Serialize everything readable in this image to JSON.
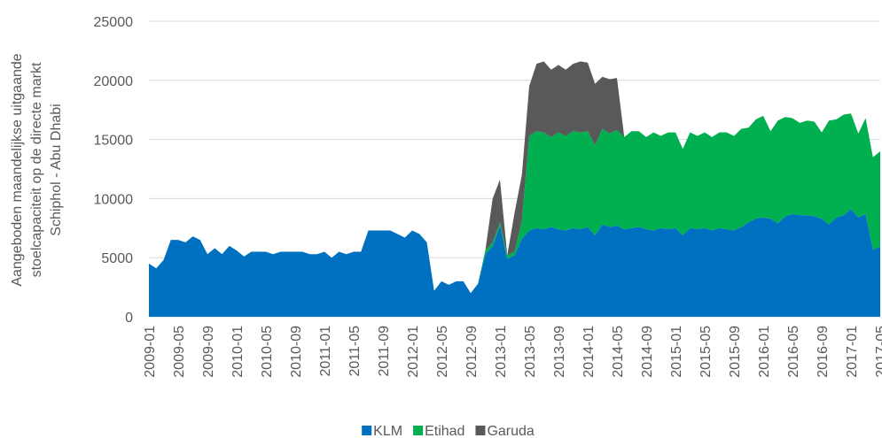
{
  "chart_data": {
    "type": "stacked-area",
    "y_label": [
      "Aangeboden maandelijkse uitgaande",
      "stoelcapaciteit op de directe markt",
      "Schiphol - Abu Dhabi"
    ],
    "x": [
      "2009-01",
      null,
      null,
      null,
      "2009-05",
      null,
      null,
      null,
      "2009-09",
      null,
      null,
      null,
      "2010-01",
      null,
      null,
      null,
      "2010-05",
      null,
      null,
      null,
      "2010-09",
      null,
      null,
      null,
      "2011-01",
      null,
      null,
      null,
      "2011-05",
      null,
      null,
      null,
      "2011-09",
      null,
      null,
      null,
      "2012-01",
      null,
      null,
      null,
      "2012-05",
      null,
      null,
      null,
      "2012-09",
      null,
      null,
      null,
      "2013-01",
      null,
      null,
      null,
      "2013-05",
      null,
      null,
      null,
      "2013-09",
      null,
      null,
      null,
      "2014-01",
      null,
      null,
      null,
      "2014-05",
      null,
      null,
      null,
      "2014-09",
      null,
      null,
      null,
      "2015-01",
      null,
      null,
      null,
      "2015-05",
      null,
      null,
      null,
      "2015-09",
      null,
      null,
      null,
      "2016-01",
      null,
      null,
      null,
      "2016-05",
      null,
      null,
      null,
      "2016-09",
      null,
      null,
      null,
      "2017-01",
      null,
      null,
      null,
      "2017-05"
    ],
    "series": [
      {
        "name": "KLM",
        "color": "#0070c0",
        "values": [
          4500,
          4100,
          4800,
          6500,
          6500,
          6300,
          6800,
          6500,
          5300,
          5800,
          5300,
          6000,
          5600,
          5100,
          5500,
          5500,
          5500,
          5300,
          5500,
          5500,
          5500,
          5500,
          5300,
          5300,
          5500,
          5000,
          5500,
          5300,
          5500,
          5500,
          7300,
          7300,
          7300,
          7300,
          7000,
          6700,
          7300,
          7000,
          6300,
          2200,
          3000,
          2700,
          3000,
          3000,
          2000,
          2800,
          5300,
          6000,
          7700,
          4900,
          5200,
          6600,
          7300,
          7500,
          7400,
          7600,
          7400,
          7300,
          7500,
          7400,
          7600,
          6900,
          7800,
          7600,
          7700,
          7400,
          7500,
          7600,
          7400,
          7300,
          7500,
          7400,
          7500,
          6900,
          7500,
          7400,
          7500,
          7300,
          7500,
          7400,
          7300,
          7600,
          8000,
          8300,
          8400,
          8300,
          7900,
          8500,
          8700,
          8600,
          8600,
          8500,
          8300,
          7800,
          8400,
          8600,
          9100,
          8400,
          8700,
          5700,
          5900
        ]
      },
      {
        "name": "Etihad",
        "color": "#00b050",
        "values": [
          0,
          0,
          0,
          0,
          0,
          0,
          0,
          0,
          0,
          0,
          0,
          0,
          0,
          0,
          0,
          0,
          0,
          0,
          0,
          0,
          0,
          0,
          0,
          0,
          0,
          0,
          0,
          0,
          0,
          0,
          0,
          0,
          0,
          0,
          0,
          0,
          0,
          0,
          0,
          0,
          0,
          0,
          0,
          0,
          0,
          0,
          300,
          300,
          300,
          300,
          300,
          1500,
          8000,
          8200,
          8200,
          7600,
          8200,
          8000,
          8200,
          8200,
          8100,
          7600,
          8100,
          7900,
          8100,
          7800,
          8200,
          8100,
          7800,
          8300,
          7800,
          8200,
          8100,
          7300,
          8100,
          7900,
          8100,
          7900,
          8100,
          8200,
          8000,
          8300,
          8000,
          8400,
          8600,
          7400,
          8700,
          8400,
          8100,
          7800,
          8000,
          8000,
          7300,
          8800,
          8300,
          8500,
          8100,
          7100,
          8100,
          7800,
          8100
        ]
      },
      {
        "name": "Garuda",
        "color": "#595959",
        "values": [
          0,
          0,
          0,
          0,
          0,
          0,
          0,
          0,
          0,
          0,
          0,
          0,
          0,
          0,
          0,
          0,
          0,
          0,
          0,
          0,
          0,
          0,
          0,
          0,
          0,
          0,
          0,
          0,
          0,
          0,
          0,
          0,
          0,
          0,
          0,
          0,
          0,
          0,
          0,
          0,
          0,
          0,
          0,
          0,
          0,
          0,
          0,
          3700,
          3600,
          0,
          3300,
          3900,
          4200,
          5700,
          6000,
          5700,
          5700,
          5600,
          5700,
          6000,
          5800,
          5200,
          4400,
          4600,
          4400,
          0,
          0,
          0,
          0,
          0,
          0,
          0,
          0,
          0,
          0,
          0,
          0,
          0,
          0,
          0,
          0,
          0,
          0,
          0,
          0,
          0,
          0,
          0,
          0,
          0,
          0,
          0,
          0,
          0,
          0,
          0,
          0,
          0,
          0,
          0,
          0
        ]
      }
    ],
    "ylim": [
      0,
      25000
    ],
    "yticks": [
      0,
      5000,
      10000,
      15000,
      20000,
      25000
    ],
    "grid": true,
    "legend": "bottom"
  }
}
